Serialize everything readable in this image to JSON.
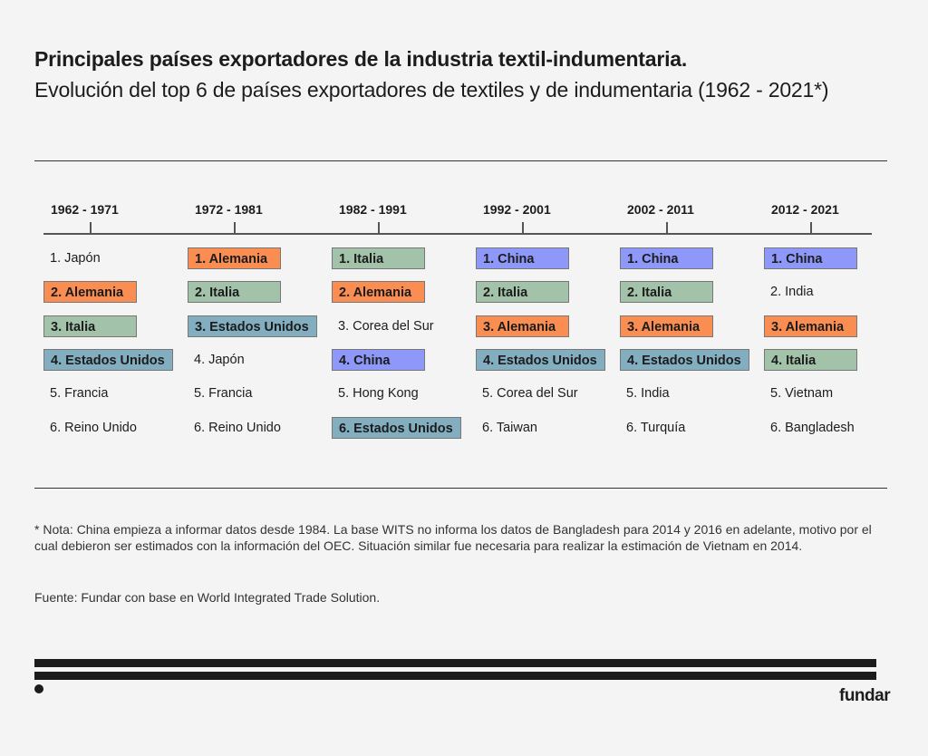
{
  "title": "Principales países exportadores de la industria textil-indumentaria.",
  "subtitle": "Evolución del top 6 de países exportadores de textiles y de indumentaria (1962 - 2021*)",
  "colors": {
    "Alemania": "#f98d52",
    "Italia": "#a2c2aa",
    "Estados Unidos": "#82aec0",
    "China": "#8e98f9"
  },
  "columns": [
    {
      "label": "1962 - 1971",
      "items": [
        {
          "text": "1. Japón",
          "country": null
        },
        {
          "text": "2. Alemania",
          "country": "Alemania"
        },
        {
          "text": "3. Italia",
          "country": "Italia"
        },
        {
          "text": "4. Estados Unidos",
          "country": "Estados Unidos"
        },
        {
          "text": "5. Francia",
          "country": null
        },
        {
          "text": "6. Reino Unido",
          "country": null
        }
      ]
    },
    {
      "label": "1972 - 1981",
      "items": [
        {
          "text": "1. Alemania",
          "country": "Alemania"
        },
        {
          "text": "2. Italia",
          "country": "Italia"
        },
        {
          "text": "3. Estados Unidos",
          "country": "Estados Unidos"
        },
        {
          "text": "4. Japón",
          "country": null
        },
        {
          "text": "5. Francia",
          "country": null
        },
        {
          "text": "6. Reino Unido",
          "country": null
        }
      ]
    },
    {
      "label": "1982 - 1991",
      "items": [
        {
          "text": "1. Italia",
          "country": "Italia"
        },
        {
          "text": "2. Alemania",
          "country": "Alemania"
        },
        {
          "text": "3. Corea del Sur",
          "country": null
        },
        {
          "text": "4. China",
          "country": "China"
        },
        {
          "text": "5. Hong Kong",
          "country": null
        },
        {
          "text": "6. Estados Unidos",
          "country": "Estados Unidos"
        }
      ]
    },
    {
      "label": "1992 - 2001",
      "items": [
        {
          "text": "1. China",
          "country": "China"
        },
        {
          "text": "2. Italia",
          "country": "Italia"
        },
        {
          "text": "3. Alemania",
          "country": "Alemania"
        },
        {
          "text": "4. Estados Unidos",
          "country": "Estados Unidos"
        },
        {
          "text": "5. Corea del Sur",
          "country": null
        },
        {
          "text": "6. Taiwan",
          "country": null
        }
      ]
    },
    {
      "label": "2002 - 2011",
      "items": [
        {
          "text": "1. China",
          "country": "China"
        },
        {
          "text": "2. Italia",
          "country": "Italia"
        },
        {
          "text": "3. Alemania",
          "country": "Alemania"
        },
        {
          "text": "4. Estados Unidos",
          "country": "Estados Unidos"
        },
        {
          "text": "5. India",
          "country": null
        },
        {
          "text": "6. Turquía",
          "country": null
        }
      ]
    },
    {
      "label": "2012 - 2021",
      "items": [
        {
          "text": "1. China",
          "country": "China"
        },
        {
          "text": "2. India",
          "country": null
        },
        {
          "text": "3. Alemania",
          "country": "Alemania"
        },
        {
          "text": "4. Italia",
          "country": "Italia"
        },
        {
          "text": "5. Vietnam",
          "country": null
        },
        {
          "text": "6. Bangladesh",
          "country": null
        }
      ]
    }
  ],
  "note": "* Nota: China empieza a informar datos desde 1984. La base WITS no informa los datos de Bangladesh para 2014 y 2016 en adelante, motivo por el cual debieron ser estimados con la información del OEC. Situación similar fue necesaria para realizar la estimación de Vietnam en 2014.",
  "source": "Fuente: Fundar con base en World Integrated Trade Solution.",
  "logo": "fundar"
}
